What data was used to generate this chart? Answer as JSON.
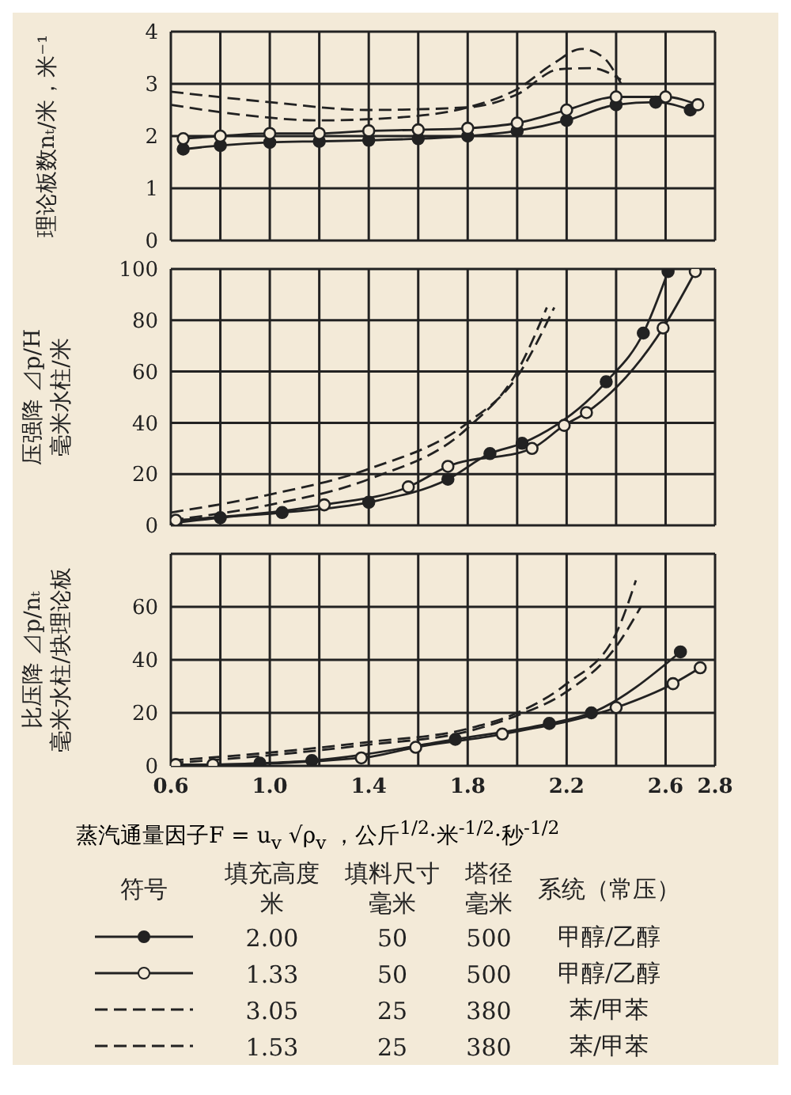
{
  "chart_data": [
    {
      "type": "line",
      "ylabel": "理论板数nₜ/米，米⁻¹",
      "xlim": [
        0.6,
        2.8
      ],
      "xticks": [
        0.6,
        0.8,
        1.0,
        1.2,
        1.4,
        1.6,
        1.8,
        2.0,
        2.2,
        2.4,
        2.6,
        2.8
      ],
      "ylim": [
        0,
        4
      ],
      "yticks": [
        0,
        1,
        2,
        3,
        4
      ],
      "grid": true,
      "tick_labels": "y",
      "series": [
        {
          "color": "#222222",
          "marker": "circle",
          "line_style": "solid",
          "x": [
            0.65,
            0.8,
            1.0,
            1.2,
            1.4,
            1.6,
            1.8,
            2.0,
            2.2,
            2.4,
            2.56,
            2.7
          ],
          "values": [
            1.75,
            1.82,
            1.88,
            1.9,
            1.92,
            1.95,
            2.0,
            2.1,
            2.3,
            2.6,
            2.65,
            2.5
          ]
        },
        {
          "color": "#222222",
          "marker": "circle",
          "line_style": "solid",
          "x": [
            0.65,
            0.8,
            1.0,
            1.2,
            1.4,
            1.6,
            1.8,
            2.0,
            2.2,
            2.4,
            2.6,
            2.73
          ],
          "values": [
            1.95,
            2.0,
            2.05,
            2.05,
            2.1,
            2.12,
            2.15,
            2.25,
            2.5,
            2.75,
            2.75,
            2.6
          ]
        },
        {
          "color": "#222222",
          "marker": "none",
          "line_style": "dashed",
          "x": [
            0.6,
            0.9,
            1.2,
            1.5,
            1.8,
            2.0,
            2.15,
            2.26,
            2.35,
            2.42
          ],
          "values": [
            2.6,
            2.4,
            2.3,
            2.35,
            2.55,
            2.9,
            3.4,
            3.67,
            3.5,
            3.0
          ]
        },
        {
          "color": "#222222",
          "marker": "none",
          "line_style": "dashed",
          "x": [
            0.6,
            1.0,
            1.4,
            1.8,
            2.0,
            2.17,
            2.3,
            2.42
          ],
          "values": [
            2.85,
            2.65,
            2.5,
            2.55,
            2.8,
            3.28,
            3.3,
            3.08
          ]
        }
      ]
    },
    {
      "type": "line",
      "ylabel": "压强降 ⊿p/H\n毫米水柱/米",
      "xlim": [
        0.6,
        2.8
      ],
      "xticks": [
        0.6,
        0.8,
        1.0,
        1.2,
        1.4,
        1.6,
        1.8,
        2.0,
        2.2,
        2.4,
        2.6,
        2.8
      ],
      "ylim": [
        0,
        100
      ],
      "yticks": [
        0,
        20,
        40,
        60,
        80,
        100
      ],
      "grid": true,
      "tick_labels": "y",
      "series": [
        {
          "color": "#222222",
          "marker": "circle",
          "line_style": "solid",
          "x": [
            0.62,
            0.8,
            1.05,
            1.4,
            1.72,
            1.89,
            2.02,
            2.36,
            2.51,
            2.61
          ],
          "values": [
            1,
            3,
            5,
            9,
            18,
            28,
            32,
            56,
            75,
            99
          ]
        },
        {
          "color": "#222222",
          "marker": "circle",
          "line_style": "solid",
          "x": [
            0.62,
            1.22,
            1.56,
            1.72,
            2.06,
            2.19,
            2.28,
            2.59,
            2.72
          ],
          "values": [
            2,
            8,
            15,
            23,
            30,
            39,
            44,
            77,
            99
          ]
        },
        {
          "color": "#222222",
          "marker": "none",
          "line_style": "dashed",
          "x": [
            0.6,
            1.0,
            1.4,
            1.8,
            2.0,
            2.15
          ],
          "values": [
            5,
            12,
            22,
            40,
            58,
            85
          ]
        },
        {
          "color": "#222222",
          "marker": "none",
          "line_style": "dashed",
          "x": [
            0.6,
            1.0,
            1.4,
            1.8,
            2.0,
            2.12
          ],
          "values": [
            2,
            8,
            18,
            38,
            60,
            85
          ]
        }
      ]
    },
    {
      "type": "line",
      "ylabel": "比压降 ⊿p/nₜ\n毫米水柱/块理论板",
      "xlabel": "蒸汽通量因子F = u$_{v}$ √ρ$_{v}$ ，公斤$^{1/2}$·米$^{-1/2}$·秒$^{-1/2}$",
      "xlim": [
        0.6,
        2.8
      ],
      "xticks": [
        0.6,
        {
          "value": 0.8,
          "label": null
        },
        {
          "value": 1,
          "label": "1.0"
        },
        {
          "value": 1.2,
          "label": null
        },
        1.4,
        {
          "value": 1.6,
          "label": null
        },
        1.8,
        {
          "value": 2.0,
          "label": null
        },
        2.2,
        {
          "value": 2.4,
          "label": null
        },
        2.6,
        2.8
      ],
      "ylim": [
        0,
        80
      ],
      "yticks": [
        0,
        20,
        40,
        60,
        {
          "value": 80,
          "label": null
        }
      ],
      "grid": true,
      "legend": "bottom",
      "legend_title": "符号",
      "annotations": [
        "填充高度",
        "米",
        "填料尺寸",
        "毫米",
        "塔径",
        "毫米",
        "系统（常压）",
        "50",
        "500",
        "甲醇/乙醇",
        "50",
        "500",
        "甲醇/乙醇",
        "25",
        "380",
        "苯/甲苯",
        "25",
        "380",
        "苯/甲苯"
      ],
      "series": [
        {
          "name": "2.00",
          "color": "#222222",
          "marker": "circle",
          "line_style": "solid",
          "x": [
            0.62,
            0.96,
            1.17,
            1.75,
            2.13,
            2.3,
            2.66
          ],
          "values": [
            0,
            1,
            2,
            10,
            16,
            20,
            43
          ]
        },
        {
          "name": "1.33",
          "color": "#222222",
          "marker": "circle",
          "line_style": "solid",
          "x": [
            0.62,
            0.77,
            1.37,
            1.59,
            1.94,
            2.4,
            2.63,
            2.74
          ],
          "values": [
            0.5,
            0.5,
            3,
            7,
            12,
            22,
            31,
            37
          ]
        },
        {
          "name": "3.05",
          "color": "#222222",
          "marker": "none",
          "line_style": "dashed",
          "x": [
            0.6,
            1.0,
            1.4,
            1.8,
            2.0,
            2.2,
            2.4,
            2.48
          ],
          "values": [
            2,
            5,
            9,
            14,
            20,
            31,
            50,
            70
          ]
        },
        {
          "name": "1.53",
          "color": "#222222",
          "marker": "none",
          "line_style": "dashed",
          "x": [
            0.6,
            1.0,
            1.4,
            1.8,
            2.0,
            2.2,
            2.4,
            2.5
          ],
          "values": [
            1,
            4,
            8,
            13,
            19,
            28,
            45,
            60
          ]
        }
      ]
    }
  ]
}
